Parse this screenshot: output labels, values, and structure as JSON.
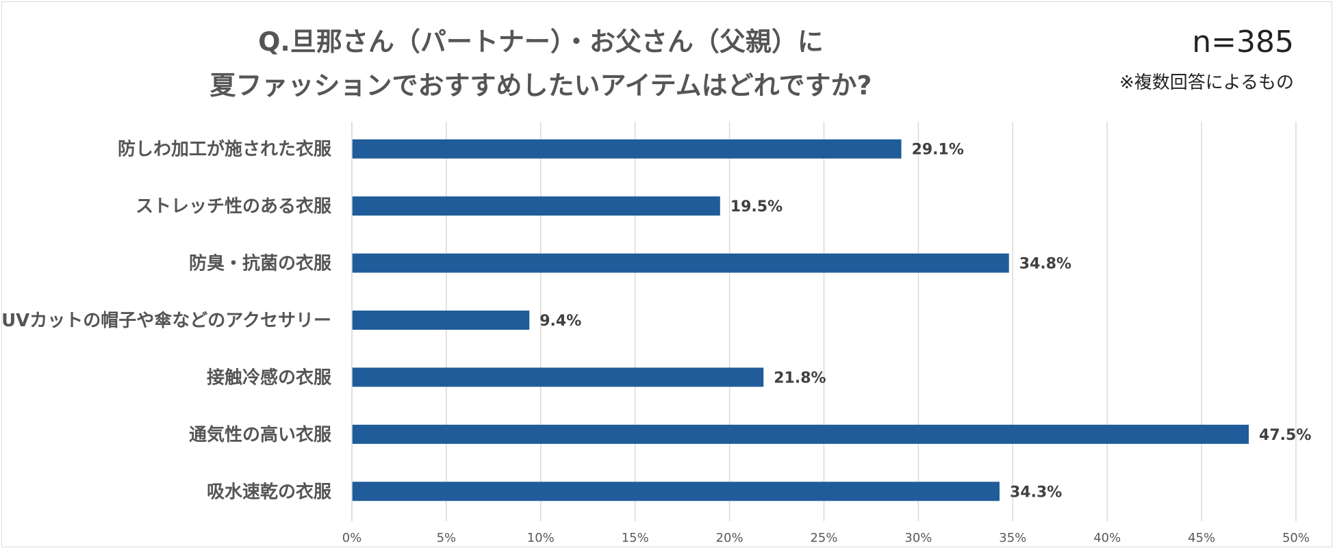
{
  "chart_data": {
    "type": "bar",
    "orientation": "horizontal",
    "title": [
      "Q.旦那さん（パートナー）・お父さん（父親）に",
      "夏ファッションでおすすめしたいアイテムはどれですか?"
    ],
    "sample_size": "n=385",
    "note": "※複数回答によるもの",
    "categories": [
      "防しわ加工が施された衣服",
      "ストレッチ性のある衣服",
      "防臭・抗菌の衣服",
      "UVカットの帽子や傘などのアクセサリー",
      "接触冷感の衣服",
      "通気性の高い衣服",
      "吸水速乾の衣服"
    ],
    "values": [
      29.1,
      19.5,
      34.8,
      9.4,
      21.8,
      47.5,
      34.3
    ],
    "value_labels": [
      "29.1%",
      "19.5%",
      "34.8%",
      "9.4%",
      "21.8%",
      "47.5%",
      "34.3%"
    ],
    "xlim": [
      0,
      50
    ],
    "x_ticks": [
      "0%",
      "5%",
      "10%",
      "15%",
      "20%",
      "25%",
      "30%",
      "35%",
      "40%",
      "45%",
      "50%"
    ],
    "grid": true,
    "bar_color": "#1f5c99",
    "grid_color": "#d9d9d9"
  }
}
